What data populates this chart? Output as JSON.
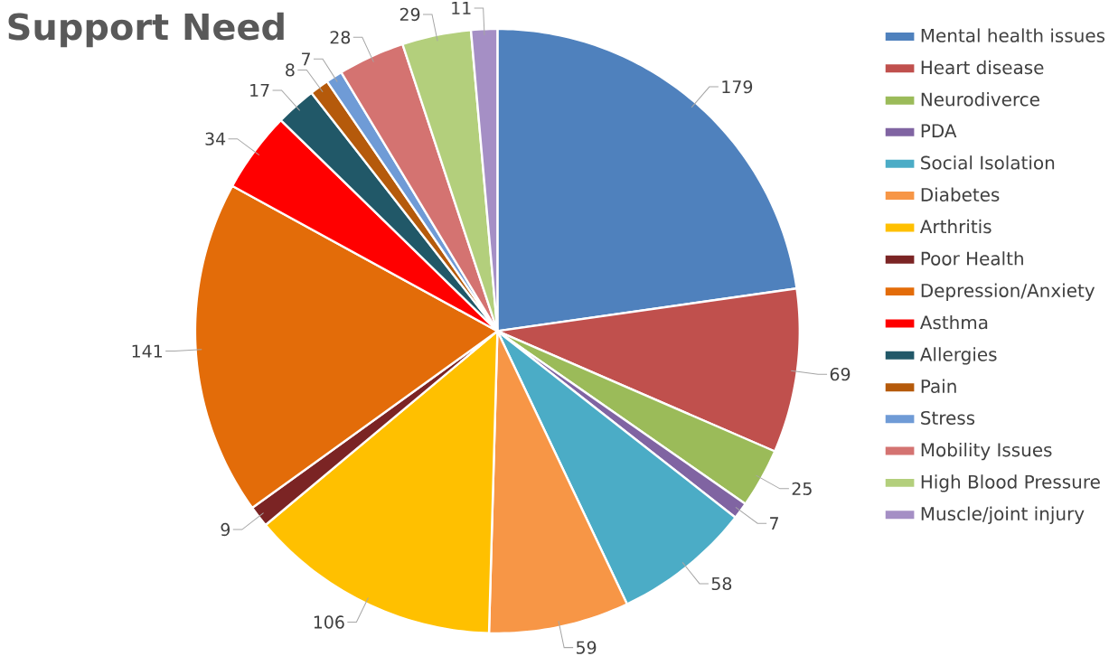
{
  "chart_data": {
    "type": "pie",
    "title": "Support Need",
    "categories": [
      "Mental health issues",
      "Heart disease",
      "Neurodiverce",
      "PDA",
      "Social Isolation",
      "Diabetes",
      "Arthritis",
      "Poor Health",
      "Depression/Anxiety",
      "Asthma",
      "Allergies",
      "Pain",
      "Stress",
      "Mobility Issues",
      "High Blood Pressure",
      "Muscle/joint injury"
    ],
    "values": [
      179,
      69,
      25,
      7,
      58,
      59,
      106,
      9,
      141,
      34,
      17,
      8,
      7,
      28,
      29,
      11
    ],
    "colors": [
      "#4f81bd",
      "#c0504d",
      "#9bbb59",
      "#8064a2",
      "#4bacc6",
      "#f79646",
      "#ffc000",
      "#7b2424",
      "#e36c09",
      "#ff0000",
      "#215868",
      "#b55a0b",
      "#6f9bd6",
      "#d47371",
      "#b3cf7c",
      "#a58fc5"
    ],
    "data_labels": true,
    "legend": "right"
  }
}
